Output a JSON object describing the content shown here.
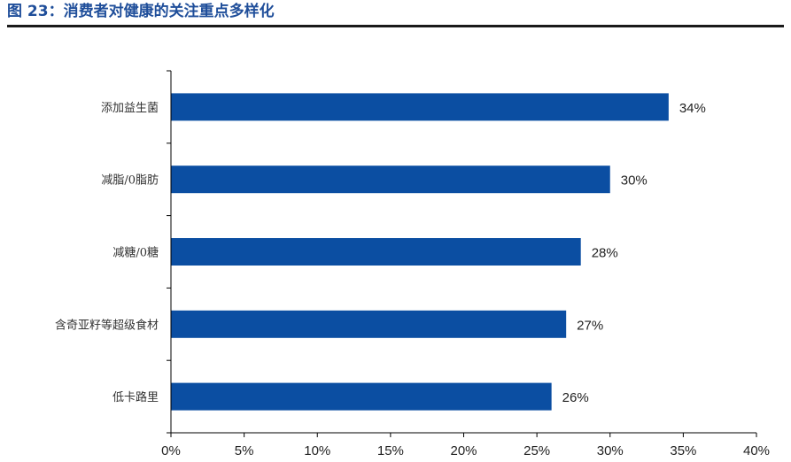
{
  "figure_title": "图 23：消费者对健康的关注重点多样化",
  "colors": {
    "bar": "#0b4ea2",
    "title": "#1f4e9a",
    "axis": "#000000"
  },
  "chart_data": {
    "type": "bar",
    "orientation": "horizontal",
    "title": "",
    "xlabel": "",
    "ylabel": "",
    "categories": [
      "添加益生菌",
      "减脂/0脂肪",
      "减糖/0糖",
      "含奇亚籽等超级食材",
      "低卡路里"
    ],
    "values": [
      34,
      30,
      28,
      27,
      26
    ],
    "value_labels": [
      "34%",
      "30%",
      "28%",
      "27%",
      "26%"
    ],
    "xlim": [
      0,
      40
    ],
    "xticks": [
      0,
      5,
      10,
      15,
      20,
      25,
      30,
      35,
      40
    ],
    "xtick_labels": [
      "0%",
      "5%",
      "10%",
      "15%",
      "20%",
      "25%",
      "30%",
      "35%",
      "40%"
    ],
    "grid": false,
    "legend": "none"
  }
}
